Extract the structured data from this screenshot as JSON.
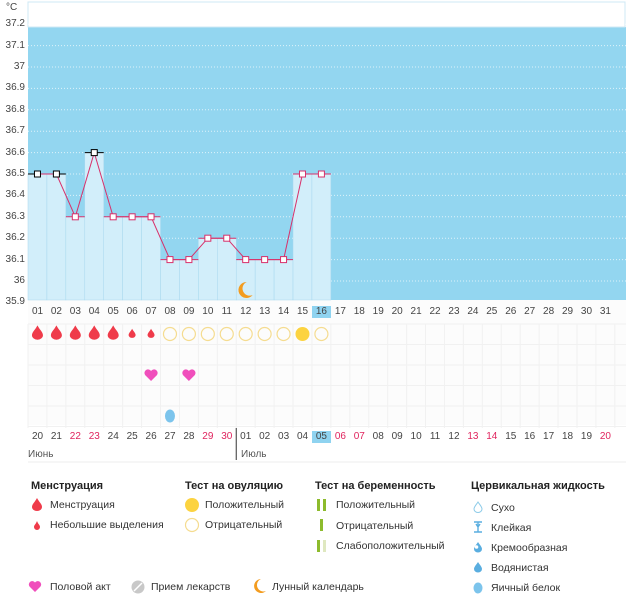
{
  "unit": "°C",
  "chart_data": {
    "type": "line",
    "ylim": [
      35.9,
      37.2
    ],
    "yticks": [
      "37.2",
      "37.1",
      "37",
      "36.9",
      "36.8",
      "36.7",
      "36.6",
      "36.5",
      "36.4",
      "36.3",
      "36.2",
      "36.1",
      "36",
      "35.9"
    ],
    "x": [
      "01",
      "02",
      "03",
      "04",
      "05",
      "06",
      "07",
      "08",
      "09",
      "10",
      "11",
      "12",
      "13",
      "14",
      "15",
      "16",
      "17",
      "18",
      "19",
      "20",
      "21",
      "22",
      "23",
      "24",
      "25",
      "26",
      "27",
      "28",
      "29",
      "30",
      "31"
    ],
    "temps": [
      36.5,
      36.5,
      36.3,
      36.6,
      36.3,
      36.3,
      36.3,
      36.1,
      36.1,
      36.2,
      36.2,
      36.1,
      36.1,
      36.1,
      36.5,
      36.5
    ],
    "black_markers": [
      1,
      2,
      4
    ],
    "current_day": "16",
    "colors": {
      "bg": "#93d6f0",
      "bar": "#d2eefa",
      "line": "#d8306a"
    }
  },
  "events": {
    "menstruation": [
      1,
      2,
      3,
      4,
      5
    ],
    "spotting": [
      6,
      7
    ],
    "ovulation_negative": [
      8,
      9,
      10,
      11,
      12,
      13,
      14,
      16
    ],
    "ovulation_positive": [
      15
    ],
    "intercourse": [
      7,
      9
    ],
    "cervical_egg_white": [
      8
    ],
    "moon": [
      12
    ]
  },
  "calendar": {
    "dates": [
      "20",
      "21",
      "22",
      "23",
      "24",
      "25",
      "26",
      "27",
      "28",
      "29",
      "30",
      "01",
      "02",
      "03",
      "04",
      "05",
      "06",
      "07",
      "08",
      "09",
      "10",
      "11",
      "12",
      "13",
      "14",
      "15",
      "16",
      "17",
      "18",
      "19",
      "20"
    ],
    "weekend": [
      2,
      3,
      9,
      10,
      16,
      17,
      23,
      24,
      30
    ],
    "today_index": 15,
    "months": [
      "Июнь",
      "Июль"
    ]
  },
  "legend": {
    "menstruation": {
      "title": "Менструация",
      "items": [
        "Менструация",
        "Небольшие выделения"
      ]
    },
    "ovulation": {
      "title": "Тест на овуляцию",
      "items": [
        "Положительный",
        "Отрицательный"
      ]
    },
    "pregnancy": {
      "title": "Тест на беременность",
      "items": [
        "Положительный",
        "Отрицательный",
        "Слабоположительный"
      ]
    },
    "cervical": {
      "title": "Цервикальная жидкость",
      "items": [
        "Сухо",
        "Клейкая",
        "Кремообразная",
        "Водянистая",
        "Яичный белок"
      ]
    },
    "other": [
      "Половой акт",
      "Прием лекарств",
      "Лунный календарь"
    ]
  }
}
